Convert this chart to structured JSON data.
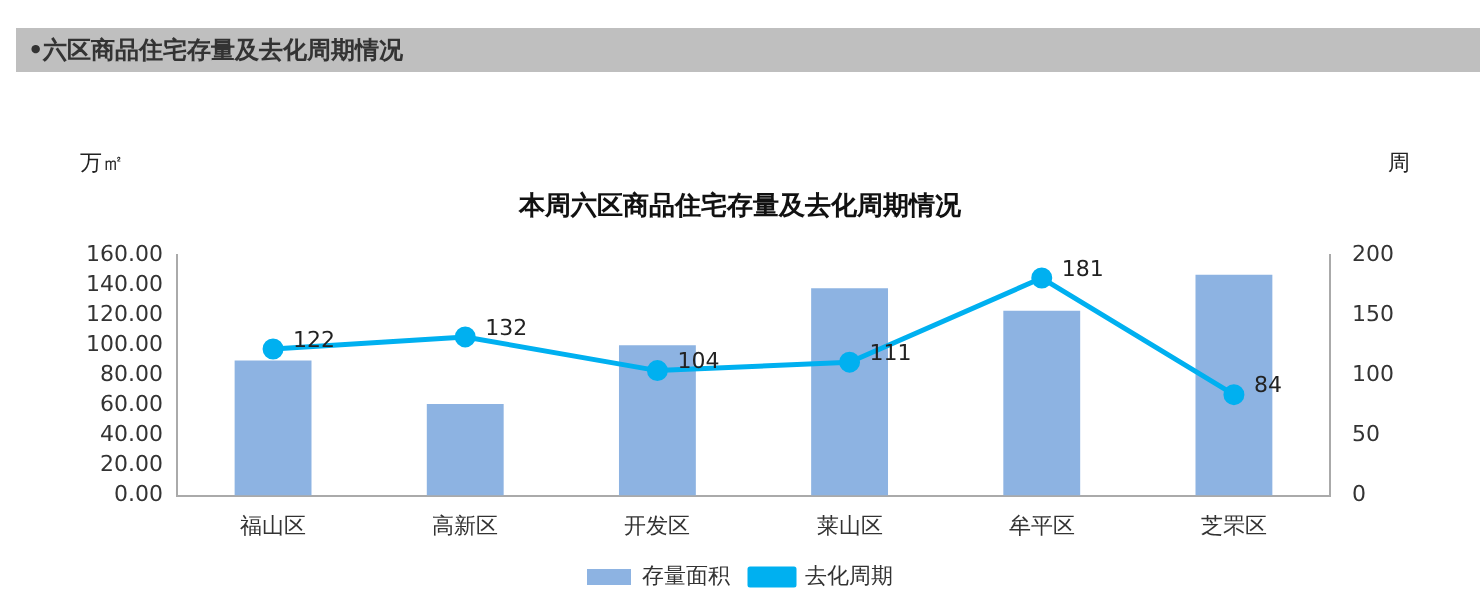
{
  "chart_data": {
    "type": "bar",
    "title": "本周六区商品住宅存量及去化周期情况",
    "annotations": [
      "•六区商品住宅存量及去化周期情况"
    ],
    "ylabel": "万㎡",
    "y2label": "周",
    "categories": [
      "福山区",
      "高新区",
      "开发区",
      "莱山区",
      "牟平区",
      "芝罘区"
    ],
    "series": [
      {
        "name": "存量面积",
        "color": "#8db3e2",
        "values": [
          90,
          61,
          100,
          138,
          123,
          147
        ]
      },
      {
        "name": "去化周期",
        "type": "line",
        "axis": "y2",
        "color": "#00b0f0",
        "values": [
          122,
          132,
          104,
          111,
          181,
          84
        ],
        "value_labels": [
          "122",
          "132",
          "104",
          "111",
          "181",
          "84"
        ]
      }
    ],
    "ylim": [
      0,
      160
    ],
    "yticks": [
      {
        "value": 0,
        "label": "0.00"
      },
      {
        "value": 20,
        "label": "20.00"
      },
      {
        "value": 40,
        "label": "40.00"
      },
      {
        "value": 60,
        "label": "60.00"
      },
      {
        "value": 80,
        "label": "80.00"
      },
      {
        "value": 100,
        "label": "100.00"
      },
      {
        "value": 120,
        "label": "120.00"
      },
      {
        "value": 140,
        "label": "140.00"
      },
      {
        "value": 160,
        "label": "160.00"
      }
    ],
    "y2lim": [
      0,
      200
    ],
    "y2ticks": [
      0,
      50,
      100,
      150,
      200
    ],
    "grid": false,
    "legend": "bottom",
    "marker": "circle",
    "line_style": "solid"
  }
}
